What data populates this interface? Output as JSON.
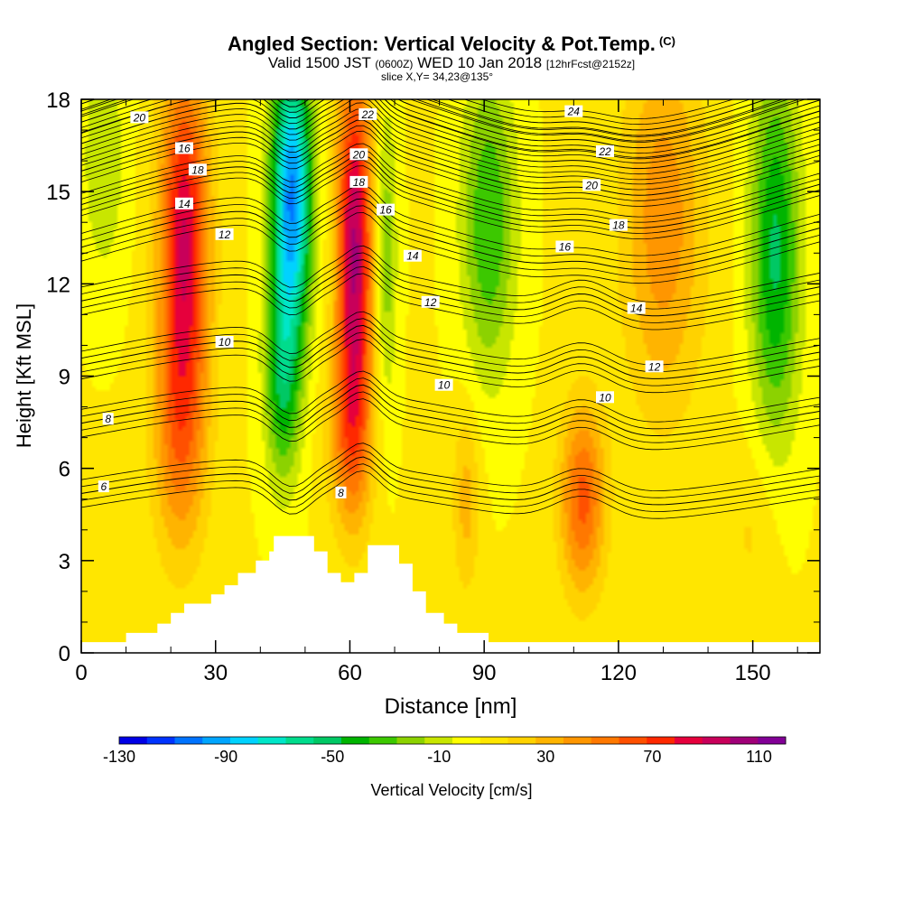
{
  "header": {
    "title": "Angled Section: Vertical Velocity & Pot.Temp.",
    "title_mark": "(C)",
    "valid_prefix": "Valid 1500 JST",
    "valid_utc": "(0600Z)",
    "valid_date": "WED 10 Jan 2018",
    "valid_fcst": "[12hrFcst@2152z]",
    "slice": "slice X,Y= 34,23@135°"
  },
  "chart_data": {
    "type": "heatmap",
    "title": "Angled Section: Vertical Velocity & Pot.Temp.",
    "xlabel": "Distance [nm]",
    "ylabel": "Height [Kft MSL]",
    "xlim": [
      0,
      165
    ],
    "ylim": [
      0,
      18
    ],
    "x_ticks": [
      "0",
      "30",
      "60",
      "90",
      "120",
      "150"
    ],
    "y_ticks": [
      "0",
      "3",
      "6",
      "9",
      "12",
      "15",
      "18"
    ],
    "colorbar": {
      "label": "Vertical Velocity [cm/s]",
      "tick_labels": [
        "-130",
        "-90",
        "-50",
        "-10",
        "30",
        "70",
        "110"
      ],
      "levels": [
        -130,
        120
      ],
      "colors": [
        "#0000e6",
        "#0033ff",
        "#0073ff",
        "#00a5ff",
        "#00d2ff",
        "#00e6c8",
        "#00dc8c",
        "#00c864",
        "#00b400",
        "#3cc800",
        "#8cd200",
        "#c8e600",
        "#ffff00",
        "#ffe600",
        "#ffd200",
        "#ffb400",
        "#ff9600",
        "#ff7800",
        "#ff5000",
        "#ff2800",
        "#e6003c",
        "#c8005a",
        "#a00078",
        "#820096"
      ]
    },
    "velocity_cells": [
      {
        "x": 23,
        "y": 13.5,
        "value": 82,
        "sx": 5.5,
        "sy": 5.5
      },
      {
        "x": 22,
        "y": 7,
        "value": 40,
        "sx": 6,
        "sy": 4
      },
      {
        "x": 47,
        "y": 15,
        "value": -105,
        "sx": 4.5,
        "sy": 4.5
      },
      {
        "x": 45,
        "y": 9,
        "value": -50,
        "sx": 4,
        "sy": 3.5
      },
      {
        "x": 61,
        "y": 13,
        "value": 95,
        "sx": 4,
        "sy": 6
      },
      {
        "x": 60,
        "y": 7,
        "value": 35,
        "sx": 5,
        "sy": 3
      },
      {
        "x": 68,
        "y": 13,
        "value": -30,
        "sx": 2.5,
        "sy": 5
      },
      {
        "x": 91,
        "y": 14,
        "value": -42,
        "sx": 6,
        "sy": 5
      },
      {
        "x": 86,
        "y": 5,
        "value": 25,
        "sx": 3,
        "sy": 3
      },
      {
        "x": 112,
        "y": 5,
        "value": 55,
        "sx": 5,
        "sy": 3
      },
      {
        "x": 130,
        "y": 14,
        "value": 38,
        "sx": 9,
        "sy": 6
      },
      {
        "x": 155,
        "y": 13,
        "value": -55,
        "sx": 5.5,
        "sy": 6
      },
      {
        "x": 150,
        "y": 4,
        "value": 12,
        "sx": 6,
        "sy": 3
      },
      {
        "x": 5,
        "y": 16,
        "value": -20,
        "sx": 5,
        "sy": 4
      }
    ],
    "theta_contours": [
      {
        "value": 6,
        "y0": 5.3
      },
      {
        "value": 8,
        "y0": 7.6
      },
      {
        "value": 10,
        "y0": 9.5
      },
      {
        "value": 12,
        "y0": 11.6
      },
      {
        "value": 14,
        "y0": 13.4
      },
      {
        "value": 16,
        "y0": 14.8
      },
      {
        "value": 18,
        "y0": 15.9
      },
      {
        "value": 20,
        "y0": 16.8
      },
      {
        "value": 22,
        "y0": 17.5
      },
      {
        "value": 24,
        "y0": 18.1
      }
    ],
    "contour_labels": [
      {
        "text": "20",
        "x": 13,
        "y": 17.4
      },
      {
        "text": "16",
        "x": 23,
        "y": 16.4
      },
      {
        "text": "18",
        "x": 26,
        "y": 15.7
      },
      {
        "text": "14",
        "x": 23,
        "y": 14.6
      },
      {
        "text": "12",
        "x": 32,
        "y": 13.6
      },
      {
        "text": "10",
        "x": 32,
        "y": 10.1
      },
      {
        "text": "8",
        "x": 6,
        "y": 7.6
      },
      {
        "text": "6",
        "x": 5,
        "y": 5.4
      },
      {
        "text": "22",
        "x": 64,
        "y": 17.5
      },
      {
        "text": "20",
        "x": 62,
        "y": 16.2
      },
      {
        "text": "18",
        "x": 62,
        "y": 15.3
      },
      {
        "text": "16",
        "x": 68,
        "y": 14.4
      },
      {
        "text": "14",
        "x": 74,
        "y": 12.9
      },
      {
        "text": "12",
        "x": 78,
        "y": 11.4
      },
      {
        "text": "10",
        "x": 81,
        "y": 8.7
      },
      {
        "text": "8",
        "x": 58,
        "y": 5.2
      },
      {
        "text": "24",
        "x": 110,
        "y": 17.6
      },
      {
        "text": "22",
        "x": 117,
        "y": 16.3
      },
      {
        "text": "20",
        "x": 114,
        "y": 15.2
      },
      {
        "text": "18",
        "x": 120,
        "y": 13.9
      },
      {
        "text": "16",
        "x": 108,
        "y": 13.2
      },
      {
        "text": "14",
        "x": 124,
        "y": 11.2
      },
      {
        "text": "12",
        "x": 128,
        "y": 9.3
      },
      {
        "text": "10",
        "x": 117,
        "y": 8.3
      }
    ],
    "terrain": [
      [
        0,
        0.35
      ],
      [
        10,
        0.35
      ],
      [
        10,
        0.65
      ],
      [
        17,
        0.65
      ],
      [
        17,
        0.95
      ],
      [
        20,
        0.95
      ],
      [
        20,
        1.3
      ],
      [
        23,
        1.3
      ],
      [
        23,
        1.6
      ],
      [
        29,
        1.6
      ],
      [
        29,
        1.9
      ],
      [
        32,
        1.9
      ],
      [
        32,
        2.2
      ],
      [
        35,
        2.2
      ],
      [
        35,
        2.6
      ],
      [
        39,
        2.6
      ],
      [
        39,
        3.0
      ],
      [
        42,
        3.0
      ],
      [
        42,
        3.3
      ],
      [
        43,
        3.3
      ],
      [
        43,
        3.8
      ],
      [
        52,
        3.8
      ],
      [
        52,
        3.3
      ],
      [
        55,
        3.3
      ],
      [
        55,
        2.6
      ],
      [
        58,
        2.6
      ],
      [
        58,
        2.3
      ],
      [
        61,
        2.3
      ],
      [
        61,
        2.6
      ],
      [
        64,
        2.6
      ],
      [
        64,
        3.5
      ],
      [
        71,
        3.5
      ],
      [
        71,
        2.9
      ],
      [
        74,
        2.9
      ],
      [
        74,
        2.0
      ],
      [
        77,
        2.0
      ],
      [
        77,
        1.3
      ],
      [
        81,
        1.3
      ],
      [
        81,
        0.95
      ],
      [
        84,
        0.95
      ],
      [
        84,
        0.65
      ],
      [
        91,
        0.65
      ],
      [
        91,
        0.35
      ],
      [
        165,
        0.35
      ],
      [
        165,
        0
      ],
      [
        0,
        0
      ]
    ]
  }
}
